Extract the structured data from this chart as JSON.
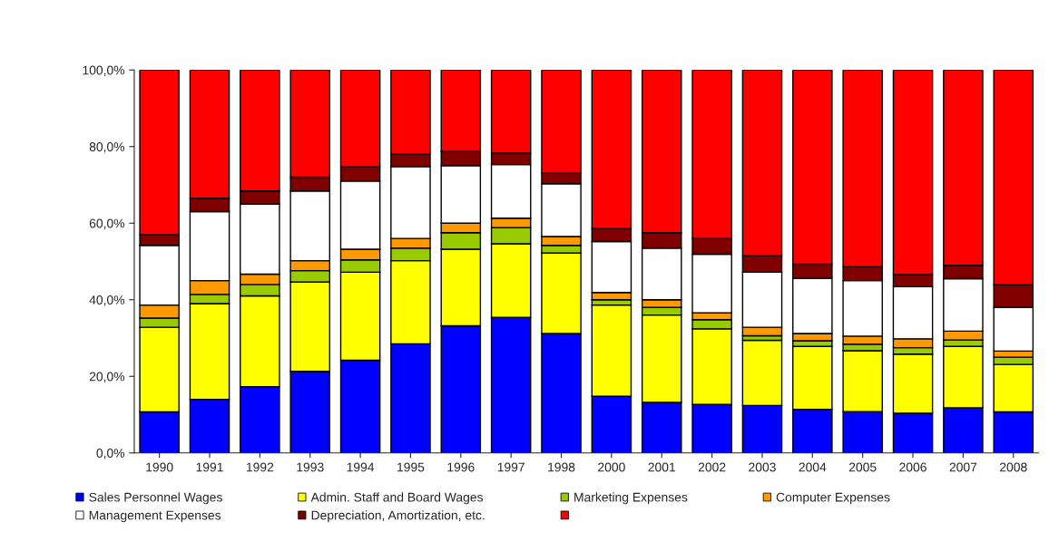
{
  "chart_data": {
    "type": "bar",
    "stacked": true,
    "categories": [
      "1990",
      "1991",
      "1992",
      "1993",
      "1994",
      "1995",
      "1996",
      "1997",
      "1998",
      "2000",
      "2001",
      "2002",
      "2003",
      "2004",
      "2005",
      "2006",
      "2007",
      "2008"
    ],
    "series": [
      {
        "name": "Sales Personnel Wages",
        "color": "#0000ff",
        "values": [
          10.7,
          14.0,
          17.3,
          21.3,
          24.2,
          28.5,
          33.2,
          35.4,
          31.2,
          14.8,
          13.2,
          12.7,
          12.4,
          11.4,
          10.8,
          10.4,
          11.8,
          10.7
        ]
      },
      {
        "name": "Admin. Staff and Board Wages",
        "color": "#ffff00",
        "values": [
          22.1,
          25.0,
          23.7,
          23.3,
          23.0,
          21.7,
          20.0,
          19.2,
          21.0,
          23.8,
          22.8,
          19.7,
          17.0,
          16.4,
          15.9,
          15.4,
          16.0,
          12.4
        ]
      },
      {
        "name": "Marketing Expenses",
        "color": "#99cc00",
        "values": [
          2.4,
          2.4,
          3.0,
          3.0,
          3.2,
          3.3,
          4.3,
          4.2,
          2.0,
          1.4,
          2.0,
          2.4,
          1.2,
          1.5,
          1.7,
          1.7,
          1.7,
          1.9
        ]
      },
      {
        "name": "Computer Expenses",
        "color": "#ff9900",
        "values": [
          3.4,
          3.6,
          2.7,
          2.6,
          2.8,
          2.5,
          2.5,
          2.5,
          2.3,
          1.9,
          2.0,
          1.8,
          2.2,
          1.9,
          2.1,
          2.3,
          2.3,
          1.6
        ]
      },
      {
        "name": "Management Expenses",
        "color": "#ffffff",
        "values": [
          15.6,
          18.0,
          18.3,
          18.2,
          17.8,
          18.8,
          15.0,
          14.0,
          13.8,
          13.3,
          13.5,
          15.3,
          14.4,
          14.4,
          14.5,
          13.6,
          13.7,
          11.4
        ]
      },
      {
        "name": "Depreciation, Amortization, etc.",
        "color": "#800000",
        "values": [
          2.8,
          3.5,
          3.4,
          3.6,
          3.8,
          3.2,
          3.7,
          3.0,
          2.7,
          3.4,
          4.0,
          4.1,
          4.3,
          3.7,
          3.6,
          3.2,
          3.5,
          5.9
        ]
      },
      {
        "color": "#ff0000",
        "values": [
          43.0,
          33.5,
          31.6,
          28.0,
          25.2,
          22.0,
          21.3,
          21.7,
          27.0,
          41.4,
          42.5,
          44.0,
          48.5,
          50.7,
          51.4,
          53.4,
          51.0,
          56.1
        ]
      }
    ],
    "ylim": [
      0,
      100
    ],
    "yticks": [
      {
        "value": 0,
        "label": "0,0%"
      },
      {
        "value": 20,
        "label": "20,0%"
      },
      {
        "value": 40,
        "label": "40,0%"
      },
      {
        "value": 60,
        "label": "60,0%"
      },
      {
        "value": 80,
        "label": "80,0%"
      },
      {
        "value": 100,
        "label": "100,0%"
      }
    ],
    "grid": false,
    "legend": "bottom"
  }
}
